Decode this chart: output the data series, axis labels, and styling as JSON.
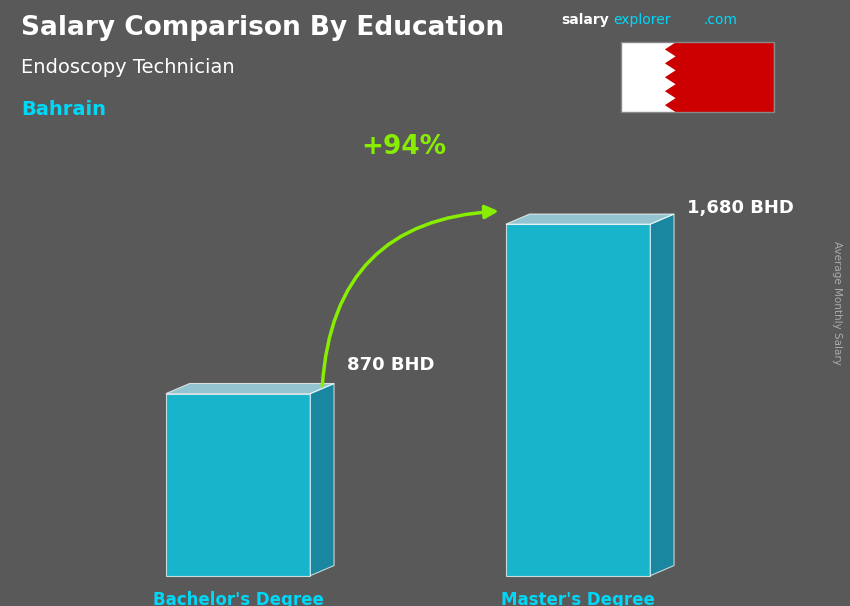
{
  "title": "Salary Comparison By Education",
  "subtitle": "Endoscopy Technician",
  "country": "Bahrain",
  "site_salary": "salary",
  "site_explorer": "explorer",
  "site_com": ".com",
  "categories": [
    "Bachelor's Degree",
    "Master's Degree"
  ],
  "values": [
    870,
    1680
  ],
  "value_labels": [
    "870 BHD",
    "1,680 BHD"
  ],
  "pct_change": "+94%",
  "bar_color_face": "#00d8f8",
  "bar_color_side": "#0099bb",
  "bar_color_top": "#aaeeff",
  "bar_alpha": 0.72,
  "ylabel_rotated": "Average Monthly Salary",
  "bg_color": "#555555",
  "title_color": "#ffffff",
  "subtitle_color": "#ffffff",
  "country_color": "#00d8f8",
  "bar_label_color": "#ffffff",
  "category_label_color": "#00d8f8",
  "pct_color": "#88ee00",
  "arrow_color": "#88ee00",
  "site_salary_color": "#ffffff",
  "site_explorer_color": "#00d8f8",
  "site_com_color": "#00d8f8",
  "ylabel_color": "#aaaaaa"
}
